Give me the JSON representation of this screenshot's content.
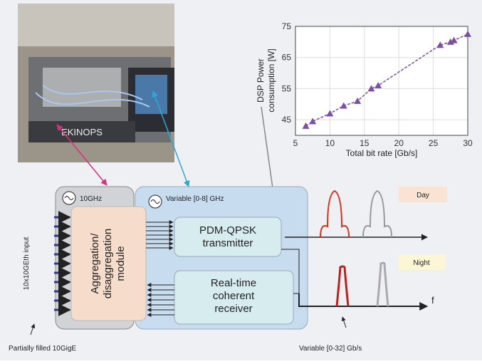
{
  "chart_data": {
    "type": "line",
    "markers": true,
    "color": "#7b4fa3",
    "x_label": "Total bit rate [Gb/s]",
    "y_label": [
      "DSP Power",
      "consumption [W]"
    ],
    "x": [
      6.5,
      7.5,
      10,
      12,
      14,
      16,
      17,
      26,
      27.5,
      28,
      30
    ],
    "values": [
      43,
      44.5,
      47,
      49.5,
      51,
      55,
      56,
      69,
      70,
      70.5,
      72.5
    ],
    "xlim": [
      5,
      30
    ],
    "xticks": [
      5,
      10,
      15,
      20,
      25,
      30
    ],
    "ylim": [
      40,
      75
    ],
    "yticks": [
      45,
      55,
      65,
      75
    ],
    "grid": true
  },
  "diagram": {
    "photo_brand": "EKINOPS",
    "clock_left": "10GHz",
    "clock_right": "Variable [0-8] GHz",
    "module": [
      "Aggregation/",
      "disaggregation",
      "module"
    ],
    "transmitter": [
      "PDM-QPSK",
      "transmitter"
    ],
    "receiver": [
      "Real-time",
      "coherent",
      "receiver"
    ],
    "input_label": "10x10GEth input",
    "partial_label": "Partially filled 10GigE",
    "rate_label": "Variable [0-32] Gb/s",
    "day": "Day",
    "night": "Night",
    "freq": "f"
  }
}
